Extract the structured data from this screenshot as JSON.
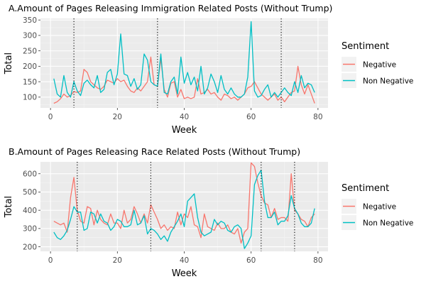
{
  "chart_data": [
    {
      "type": "line",
      "title": "A.Amount of Pages Releasing Immigration Related Posts (Without Trump)",
      "xlabel": "Week",
      "ylabel": "Total",
      "xlim": [
        -3,
        83
      ],
      "ylim": [
        65,
        355
      ],
      "x_ticks": [
        0,
        20,
        40,
        60,
        80
      ],
      "y_ticks": [
        100,
        150,
        200,
        250,
        300,
        350
      ],
      "grid": true,
      "legend_position": "right",
      "legend_title": "Sentiment",
      "vlines": [
        7,
        32,
        69
      ],
      "x": [
        1,
        2,
        3,
        4,
        5,
        6,
        7,
        8,
        9,
        10,
        11,
        12,
        13,
        14,
        15,
        16,
        17,
        18,
        19,
        20,
        21,
        22,
        23,
        24,
        25,
        26,
        27,
        28,
        29,
        30,
        31,
        32,
        33,
        34,
        35,
        36,
        37,
        38,
        39,
        40,
        41,
        42,
        43,
        44,
        45,
        46,
        47,
        48,
        49,
        50,
        51,
        52,
        53,
        54,
        55,
        56,
        57,
        58,
        59,
        60,
        61,
        62,
        63,
        64,
        65,
        66,
        67,
        68,
        69,
        70,
        71,
        72,
        73,
        74,
        75,
        76,
        77,
        78,
        79
      ],
      "series": [
        {
          "name": "Negative",
          "color": "#F8766D",
          "values": [
            80,
            85,
            95,
            110,
            100,
            105,
            118,
            115,
            120,
            190,
            180,
            150,
            140,
            130,
            125,
            135,
            155,
            150,
            145,
            160,
            150,
            155,
            135,
            120,
            115,
            130,
            120,
            135,
            150,
            230,
            140,
            135,
            225,
            125,
            100,
            145,
            150,
            100,
            125,
            95,
            100,
            95,
            100,
            160,
            110,
            115,
            125,
            110,
            115,
            100,
            90,
            110,
            105,
            95,
            100,
            90,
            100,
            110,
            130,
            135,
            150,
            130,
            110,
            100,
            90,
            100,
            110,
            90,
            100,
            85,
            100,
            115,
            120,
            200,
            140,
            110,
            140,
            110,
            80
          ]
        },
        {
          "name": "Non Negative",
          "color": "#00BFC4",
          "values": [
            160,
            110,
            100,
            170,
            115,
            100,
            150,
            120,
            105,
            145,
            155,
            140,
            130,
            170,
            115,
            125,
            180,
            190,
            140,
            175,
            305,
            175,
            170,
            135,
            160,
            125,
            140,
            240,
            220,
            150,
            140,
            135,
            240,
            115,
            110,
            150,
            165,
            110,
            230,
            145,
            180,
            140,
            165,
            120,
            200,
            110,
            130,
            175,
            150,
            115,
            170,
            125,
            110,
            130,
            110,
            100,
            100,
            110,
            165,
            345,
            120,
            100,
            105,
            125,
            140,
            100,
            115,
            100,
            115,
            130,
            115,
            105,
            150,
            115,
            170,
            130,
            145,
            140,
            115
          ]
        }
      ]
    },
    {
      "type": "line",
      "title": "B.Amount of Pages Releasing Race Related Posts (Without Trump)",
      "xlabel": "Week",
      "ylabel": "Total",
      "xlim": [
        -3,
        83
      ],
      "ylim": [
        175,
        665
      ],
      "x_ticks": [
        0,
        20,
        40,
        60,
        80
      ],
      "y_ticks": [
        200,
        300,
        400,
        500,
        600
      ],
      "grid": true,
      "legend_position": "right",
      "legend_title": "Sentiment",
      "vlines": [
        8,
        30,
        63,
        73
      ],
      "x": [
        1,
        2,
        3,
        4,
        5,
        6,
        7,
        8,
        9,
        10,
        11,
        12,
        13,
        14,
        15,
        16,
        17,
        18,
        19,
        20,
        21,
        22,
        23,
        24,
        25,
        26,
        27,
        28,
        29,
        30,
        31,
        32,
        33,
        34,
        35,
        36,
        37,
        38,
        39,
        40,
        41,
        42,
        43,
        44,
        45,
        46,
        47,
        48,
        49,
        50,
        51,
        52,
        53,
        54,
        55,
        56,
        57,
        58,
        59,
        60,
        61,
        62,
        63,
        64,
        65,
        66,
        67,
        68,
        69,
        70,
        71,
        72,
        73,
        74,
        75,
        76,
        77,
        78,
        79
      ],
      "series": [
        {
          "name": "Negative",
          "color": "#F8766D",
          "values": [
            340,
            330,
            320,
            330,
            280,
            470,
            580,
            400,
            340,
            330,
            420,
            410,
            320,
            400,
            350,
            330,
            320,
            380,
            330,
            330,
            300,
            400,
            330,
            350,
            420,
            380,
            330,
            380,
            330,
            430,
            390,
            350,
            300,
            320,
            290,
            310,
            300,
            390,
            320,
            380,
            360,
            420,
            320,
            310,
            250,
            380,
            310,
            300,
            290,
            330,
            300,
            300,
            320,
            280,
            270,
            300,
            220,
            280,
            300,
            660,
            640,
            550,
            480,
            440,
            430,
            360,
            410,
            350,
            360,
            360,
            340,
            600,
            400,
            380,
            350,
            340,
            310,
            360,
            380
          ]
        },
        {
          "name": "Non Negative",
          "color": "#00BFC4",
          "values": [
            280,
            250,
            240,
            260,
            290,
            350,
            420,
            390,
            390,
            290,
            300,
            390,
            380,
            330,
            380,
            340,
            330,
            290,
            310,
            350,
            340,
            310,
            310,
            320,
            400,
            320,
            330,
            370,
            270,
            300,
            290,
            270,
            240,
            260,
            230,
            280,
            310,
            340,
            380,
            310,
            450,
            470,
            490,
            360,
            280,
            260,
            270,
            280,
            350,
            320,
            340,
            330,
            290,
            280,
            310,
            320,
            300,
            190,
            220,
            260,
            540,
            590,
            620,
            450,
            360,
            360,
            390,
            320,
            340,
            340,
            370,
            480,
            410,
            380,
            330,
            310,
            310,
            330,
            410
          ]
        }
      ]
    }
  ]
}
